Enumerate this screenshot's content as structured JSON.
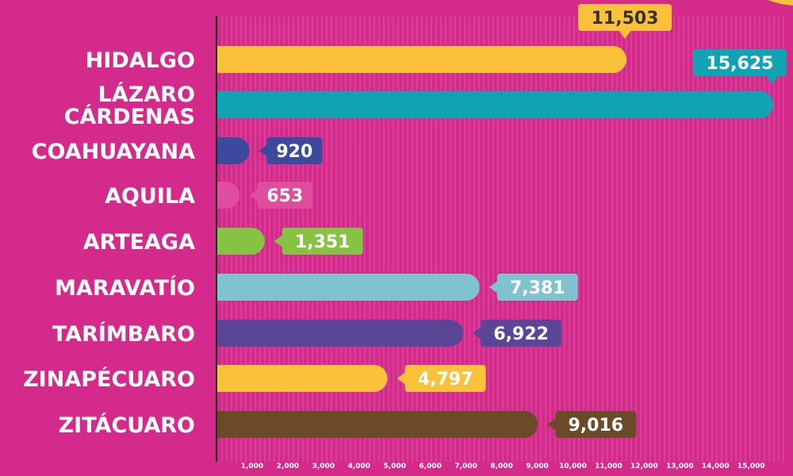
{
  "chart_data": {
    "type": "bar",
    "orientation": "horizontal",
    "title": "",
    "xlabel": "",
    "ylabel": "",
    "xlim": [
      0,
      15500
    ],
    "grid": true,
    "categories": [
      "HIDALGO",
      "LÁZARO CÁRDENAS",
      "COAHUAYANA",
      "AQUILA",
      "ARTEAGA",
      "MARAVATÍO",
      "TARÍMBARO",
      "ZINAPÉCUARO",
      "ZITÁCUARO"
    ],
    "values": [
      11503,
      15625,
      920,
      653,
      1351,
      7381,
      6922,
      4797,
      9016
    ],
    "value_labels": [
      "11,503",
      "15,625",
      "920",
      "653",
      "1,351",
      "7,381",
      "6,922",
      "4,797",
      "9,016"
    ],
    "bar_colors": [
      "#fcc13a",
      "#10a3b3",
      "#3b4a9c",
      "#e04d9e",
      "#86c342",
      "#7fc3cf",
      "#5a4597",
      "#fcc13a",
      "#6b4a2a"
    ],
    "label_colors": [
      "#fcc13a",
      "#10a3b3",
      "#3b4a9c",
      "#e04d9e",
      "#86c342",
      "#7fc3cf",
      "#5a4597",
      "#fcc13a",
      "#6b4a2a"
    ],
    "label_text_colors": [
      "#333333",
      "#ffffff",
      "#ffffff",
      "#ffffff",
      "#ffffff",
      "#ffffff",
      "#ffffff",
      "#ffffff",
      "#ffffff"
    ],
    "x_ticks": [
      1000,
      2000,
      3000,
      4000,
      5000,
      6000,
      7000,
      8000,
      9000,
      10000,
      11000,
      12000,
      13000,
      14000,
      15000
    ],
    "x_tick_labels": [
      "1,000",
      "2,000",
      "3,000",
      "4,000",
      "5,000",
      "6,000",
      "7,000",
      "8,000",
      "9,000",
      "10,000",
      "11,000",
      "12,000",
      "13,000",
      "14,000",
      "15,000"
    ],
    "background_color": "#d42a8c"
  }
}
